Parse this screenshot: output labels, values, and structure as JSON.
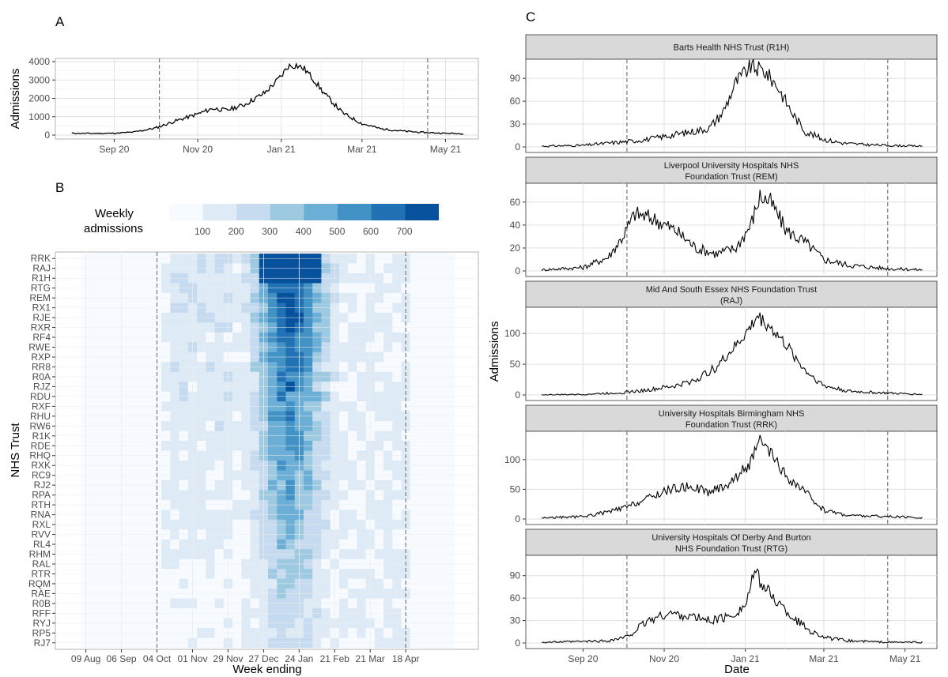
{
  "panel_labels": [
    "A",
    "B",
    "C"
  ],
  "chart_data": [
    {
      "id": "A",
      "type": "line",
      "ylabel": "Admissions",
      "xlabel": "",
      "x_ticks": [
        "Sep 20",
        "Nov 20",
        "Jan 21",
        "Mar 21",
        "May 21"
      ],
      "y_ticks": [
        "0",
        "1000",
        "2000",
        "3000",
        "4000"
      ],
      "ylim": [
        0,
        4000
      ],
      "grid": true,
      "vlines": [
        "2020-10-04",
        "2021-04-18"
      ],
      "x": [
        "2020-08-01",
        "2020-08-15",
        "2020-09-01",
        "2020-09-15",
        "2020-10-01",
        "2020-10-15",
        "2020-11-01",
        "2020-11-12",
        "2020-11-22",
        "2020-12-05",
        "2020-12-20",
        "2021-01-01",
        "2021-01-06",
        "2021-01-12",
        "2021-01-18",
        "2021-01-25",
        "2021-02-01",
        "2021-02-15",
        "2021-03-01",
        "2021-03-15",
        "2021-04-01",
        "2021-04-15",
        "2021-05-01",
        "2021-05-14"
      ],
      "y": [
        100,
        90,
        100,
        160,
        380,
        750,
        1150,
        1450,
        1350,
        1650,
        2300,
        3200,
        3750,
        3800,
        3600,
        3000,
        2300,
        1200,
        620,
        340,
        210,
        140,
        100,
        80
      ]
    },
    {
      "id": "B",
      "type": "heatmap",
      "xlabel": "Week ending",
      "ylabel": "NHS Trust",
      "x_ticks": [
        "09 Aug",
        "06 Sep",
        "04 Oct",
        "01 Nov",
        "29 Nov",
        "27 Dec",
        "24 Jan",
        "21 Feb",
        "21 Mar",
        "18 Apr"
      ],
      "rows": [
        "RRK",
        "RAJ",
        "R1H",
        "RTG",
        "REM",
        "RX1",
        "RJE",
        "RXR",
        "RF4",
        "RWE",
        "RXP",
        "RR8",
        "R0A",
        "RJZ",
        "RDU",
        "RXF",
        "RHU",
        "RW6",
        "R1K",
        "RDE",
        "RHQ",
        "RXK",
        "RC9",
        "RJ2",
        "RPA",
        "RTH",
        "RNA",
        "RXL",
        "RVV",
        "RL4",
        "RHM",
        "RAL",
        "RTR",
        "RQM",
        "RAE",
        "R0B",
        "RFF",
        "RYJ",
        "RP5",
        "RJ7"
      ],
      "legend": {
        "title_line1": "Weekly",
        "title_line2": "admissions",
        "labels": [
          "100",
          "200",
          "300",
          "400",
          "500",
          "600",
          "700"
        ],
        "colors": [
          "#f7fbff",
          "#deebf7",
          "#c6dbef",
          "#9ecae1",
          "#6baed6",
          "#4292c6",
          "#2171b5",
          "#08519c"
        ]
      },
      "vlines": [
        "04 Oct",
        "18 Apr"
      ],
      "grid": true
    },
    {
      "id": "C",
      "type": "line",
      "xlabel": "Date",
      "ylabel": "Admissions",
      "x_ticks": [
        "Sep 20",
        "Nov 20",
        "Jan 21",
        "Mar 21",
        "May 21"
      ],
      "vlines": [
        "2020-10-04",
        "2021-04-18"
      ],
      "grid": true,
      "facets": [
        {
          "strip_line1": "Barts Health NHS Trust (R1H)",
          "strip_line2": "",
          "y_ticks": [
            "0",
            "30",
            "60",
            "90"
          ],
          "ylim": [
            0,
            113
          ],
          "x": [
            "2020-08-01",
            "2020-09-01",
            "2020-09-20",
            "2020-10-04",
            "2020-10-20",
            "2020-11-05",
            "2020-11-22",
            "2020-12-05",
            "2020-12-15",
            "2020-12-25",
            "2021-01-05",
            "2021-01-15",
            "2021-01-25",
            "2021-02-05",
            "2021-02-15",
            "2021-03-01",
            "2021-03-15",
            "2021-04-01",
            "2021-04-18",
            "2021-05-14"
          ],
          "y": [
            1,
            2,
            5,
            7,
            10,
            15,
            20,
            25,
            45,
            85,
            105,
            100,
            80,
            45,
            20,
            10,
            5,
            3,
            2,
            1
          ]
        },
        {
          "strip_line1": "Liverpool University Hospitals NHS",
          "strip_line2": "Foundation Trust (REM)",
          "y_ticks": [
            "0",
            "20",
            "40",
            "60"
          ],
          "ylim": [
            0,
            75
          ],
          "x": [
            "2020-08-01",
            "2020-09-01",
            "2020-09-20",
            "2020-10-01",
            "2020-10-10",
            "2020-10-25",
            "2020-11-10",
            "2020-11-25",
            "2020-12-10",
            "2020-12-25",
            "2021-01-05",
            "2021-01-12",
            "2021-01-20",
            "2021-02-01",
            "2021-02-15",
            "2021-03-01",
            "2021-03-20",
            "2021-04-18",
            "2021-05-14"
          ],
          "y": [
            1,
            3,
            12,
            30,
            50,
            45,
            35,
            20,
            15,
            20,
            40,
            65,
            60,
            35,
            25,
            10,
            5,
            2,
            1
          ]
        },
        {
          "strip_line1": "Mid And South Essex NHS Foundation Trust",
          "strip_line2": "(RAJ)",
          "y_ticks": [
            "0",
            "50",
            "100"
          ],
          "ylim": [
            0,
            140
          ],
          "x": [
            "2020-08-01",
            "2020-09-01",
            "2020-10-01",
            "2020-10-20",
            "2020-11-10",
            "2020-11-25",
            "2020-12-10",
            "2020-12-25",
            "2021-01-05",
            "2021-01-10",
            "2021-01-20",
            "2021-02-01",
            "2021-02-15",
            "2021-03-01",
            "2021-03-20",
            "2021-04-18",
            "2021-05-14"
          ],
          "y": [
            0,
            1,
            4,
            8,
            15,
            25,
            45,
            80,
            110,
            128,
            110,
            80,
            40,
            15,
            6,
            3,
            1
          ]
        },
        {
          "strip_line1": "University Hospitals Birmingham NHS",
          "strip_line2": "Foundation Trust (RRK)",
          "y_ticks": [
            "0",
            "50",
            "100"
          ],
          "ylim": [
            0,
            145
          ],
          "x": [
            "2020-08-01",
            "2020-09-01",
            "2020-09-20",
            "2020-10-04",
            "2020-10-20",
            "2020-11-05",
            "2020-11-22",
            "2020-12-05",
            "2020-12-20",
            "2021-01-05",
            "2021-01-12",
            "2021-01-20",
            "2021-02-01",
            "2021-02-15",
            "2021-03-01",
            "2021-03-20",
            "2021-04-18",
            "2021-05-14"
          ],
          "y": [
            2,
            4,
            12,
            20,
            35,
            50,
            55,
            45,
            60,
            95,
            130,
            110,
            70,
            45,
            15,
            6,
            4,
            2
          ]
        },
        {
          "strip_line1": "University Hospitals Of Derby And Burton",
          "strip_line2": "NHS Foundation Trust (RTG)",
          "y_ticks": [
            "0",
            "30",
            "60",
            "90"
          ],
          "ylim": [
            0,
            115
          ],
          "x": [
            "2020-08-01",
            "2020-09-01",
            "2020-09-20",
            "2020-10-04",
            "2020-10-20",
            "2020-11-05",
            "2020-11-22",
            "2020-12-05",
            "2020-12-20",
            "2021-01-01",
            "2021-01-08",
            "2021-01-15",
            "2021-01-25",
            "2021-02-05",
            "2021-02-20",
            "2021-03-05",
            "2021-03-20",
            "2021-04-18",
            "2021-05-14"
          ],
          "y": [
            1,
            2,
            3,
            8,
            30,
            40,
            35,
            30,
            35,
            50,
            95,
            75,
            55,
            35,
            15,
            6,
            3,
            1,
            1
          ]
        }
      ]
    }
  ]
}
